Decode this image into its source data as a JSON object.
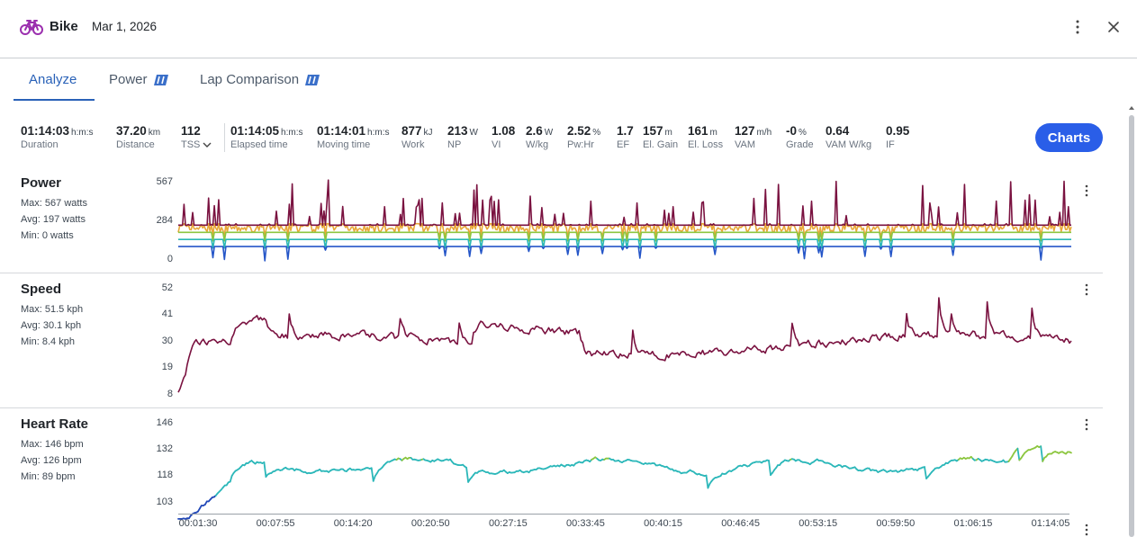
{
  "header": {
    "title": "Bike",
    "date": "Mar 1, 2026",
    "bike_icon_color": "#9b2fae"
  },
  "tabs": [
    {
      "label": "Analyze",
      "active": true
    },
    {
      "label": "Power",
      "premium": true
    },
    {
      "label": "Lap Comparison",
      "premium": true
    }
  ],
  "stats": {
    "duration": {
      "value": "01:14:03",
      "unit": "h:m:s",
      "label": "Duration"
    },
    "distance": {
      "value": "37.20",
      "unit": "km",
      "label": "Distance"
    },
    "tss": {
      "value": "112",
      "unit": "",
      "label": "TSS"
    },
    "elapsed": {
      "value": "01:14:05",
      "unit": "h:m:s",
      "label": "Elapsed time"
    },
    "moving": {
      "value": "01:14:01",
      "unit": "h:m:s",
      "label": "Moving time"
    },
    "work": {
      "value": "877",
      "unit": "kJ",
      "label": "Work"
    },
    "np": {
      "value": "213",
      "unit": "W",
      "label": "NP"
    },
    "vi": {
      "value": "1.08",
      "unit": "",
      "label": "VI"
    },
    "wkg": {
      "value": "2.6",
      "unit": "W",
      "label": "W/kg"
    },
    "pwhr": {
      "value": "2.52",
      "unit": "%",
      "label": "Pw:Hr"
    },
    "ef": {
      "value": "1.7",
      "unit": "",
      "label": "EF"
    },
    "elgain": {
      "value": "157",
      "unit": "m",
      "label": "El. Gain"
    },
    "elloss": {
      "value": "161",
      "unit": "m",
      "label": "El. Loss"
    },
    "vam": {
      "value": "127",
      "unit": "m/h",
      "label": "VAM"
    },
    "grade": {
      "value": "-0",
      "unit": "%",
      "label": "Grade"
    },
    "vamwkg": {
      "value": "0.64",
      "unit": "",
      "label": "VAM W/kg"
    },
    "if": {
      "value": "0.95",
      "unit": "",
      "label": "IF"
    }
  },
  "charts_button": "Charts",
  "accent_color": "#2a5ee8",
  "panels": {
    "power": {
      "title": "Power",
      "max": "Max: 567",
      "max_unit": "watts",
      "avg": "Avg: 197",
      "avg_unit": "watts",
      "min": "Min: 0",
      "min_unit": "watts",
      "ticks": [
        "567",
        "284",
        "0"
      ]
    },
    "speed": {
      "title": "Speed",
      "max": "Max: 51.5",
      "max_unit": "kph",
      "avg": "Avg: 30.1",
      "avg_unit": "kph",
      "min": "Min: 8.4",
      "min_unit": "kph",
      "ticks": [
        "52",
        "41",
        "30",
        "19",
        "8"
      ]
    },
    "hr": {
      "title": "Heart Rate",
      "max": "Max: 146",
      "max_unit": "bpm",
      "avg": "Avg: 126",
      "avg_unit": "bpm",
      "min": "Min: 89",
      "min_unit": "bpm",
      "ticks": [
        "146",
        "132",
        "118",
        "103"
      ]
    }
  },
  "x_ticks": [
    "00:01:30",
    "00:07:55",
    "00:14:20",
    "00:20:50",
    "00:27:15",
    "00:33:45",
    "00:40:15",
    "00:46:45",
    "00:53:15",
    "00:59:50",
    "01:06:15",
    "01:14:05"
  ],
  "chart_data": [
    {
      "type": "line",
      "series": [
        {
          "name": "Power",
          "units": "watts",
          "color": "#7a1240"
        }
      ],
      "ylim": [
        0,
        567
      ],
      "x_range": [
        "00:01:30",
        "01:14:05"
      ],
      "max": 567,
      "avg": 197,
      "min": 0
    },
    {
      "type": "line",
      "series": [
        {
          "name": "Speed",
          "units": "kph",
          "color": "#7a1240"
        }
      ],
      "ylim": [
        8,
        52
      ],
      "x_range": [
        "00:01:30",
        "01:14:05"
      ],
      "max": 51.5,
      "avg": 30.1,
      "min": 8.4
    },
    {
      "type": "line",
      "series": [
        {
          "name": "Heart Rate",
          "units": "bpm",
          "color": "#2bb7b9"
        }
      ],
      "ylim": [
        103,
        146
      ],
      "x_range": [
        "00:01:30",
        "01:14:05"
      ],
      "max": 146,
      "avg": 126,
      "min": 89
    }
  ]
}
